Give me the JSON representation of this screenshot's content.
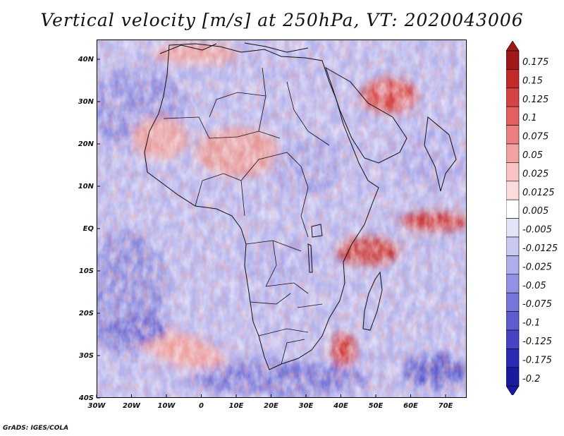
{
  "title": "Vertical velocity [m/s] at 250hPa, VT: 2020043006",
  "credit": "GrADS: IGES/COLA",
  "lat_labels": [
    "40N",
    "30N",
    "20N",
    "10N",
    "EQ",
    "10S",
    "20S",
    "30S",
    "40S"
  ],
  "lon_labels": [
    "30W",
    "20W",
    "10W",
    "0",
    "10E",
    "20E",
    "30E",
    "40E",
    "50E",
    "60E",
    "70E"
  ],
  "colorbar": {
    "levels": [
      "0.175",
      "0.15",
      "0.125",
      "0.1",
      "0.075",
      "0.05",
      "0.025",
      "0.0125",
      "0.005",
      "-0.005",
      "-0.0125",
      "-0.025",
      "-0.05",
      "-0.075",
      "-0.1",
      "-0.125",
      "-0.175",
      "-0.2"
    ],
    "colors": [
      "#a01818",
      "#c52a2a",
      "#d64343",
      "#e36060",
      "#ec8080",
      "#f2a2a2",
      "#f7c3c3",
      "#fbdcdc",
      "#ffffff",
      "#e4e4f8",
      "#c9c9f2",
      "#aeaeec",
      "#9292e4",
      "#7777db",
      "#5d5dd0",
      "#4444c4",
      "#2a2ab4",
      "#1a1aa0"
    ]
  }
}
